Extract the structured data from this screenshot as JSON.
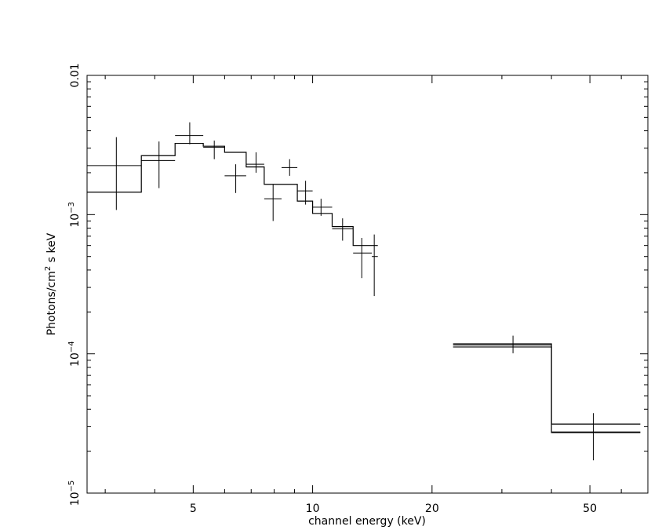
{
  "chart_data": {
    "type": "scatter",
    "title": "",
    "xlabel": "channel energy (keV)",
    "ylabel": "Photons/cm² s keV",
    "x_scale": "log",
    "y_scale": "log",
    "xlim": [
      2.7,
      70
    ],
    "ylim": [
      1e-05,
      0.01
    ],
    "x_ticks": [
      {
        "value": 5,
        "label": "5"
      },
      {
        "value": 10,
        "label": "10"
      },
      {
        "value": 20,
        "label": "20"
      },
      {
        "value": 50,
        "label": "50"
      }
    ],
    "y_ticks": [
      {
        "value": 1e-05,
        "base": "10",
        "exp": "−5"
      },
      {
        "value": 0.0001,
        "base": "10",
        "exp": "−4"
      },
      {
        "value": 0.001,
        "base": "10",
        "exp": "−3"
      },
      {
        "value": 0.01,
        "base": "0.01",
        "exp": ""
      }
    ],
    "grid": false,
    "legend": "none",
    "series": [
      {
        "type": "errorbars",
        "points": [
          {
            "x": 3.2,
            "xerr": [
              2.7,
              3.7
            ],
            "y": 0.00225,
            "yerr": [
              0.00108,
              0.0036
            ]
          },
          {
            "x": 4.1,
            "xerr": [
              3.7,
              4.5
            ],
            "y": 0.00245,
            "yerr": [
              0.00155,
              0.00335
            ]
          },
          {
            "x": 4.9,
            "xerr": [
              4.5,
              5.3
            ],
            "y": 0.0037,
            "yerr": [
              0.0032,
              0.0046
            ]
          },
          {
            "x": 5.65,
            "xerr": [
              5.3,
              6.0
            ],
            "y": 0.00305,
            "yerr": [
              0.0025,
              0.0034
            ]
          },
          {
            "x": 6.4,
            "xerr": [
              6.0,
              6.8
            ],
            "y": 0.0019,
            "yerr": [
              0.00143,
              0.0023
            ]
          },
          {
            "x": 7.2,
            "xerr": [
              6.8,
              7.55
            ],
            "y": 0.0023,
            "yerr": [
              0.002,
              0.0028
            ]
          },
          {
            "x": 7.95,
            "xerr": [
              7.55,
              8.35
            ],
            "y": 0.0013,
            "yerr": [
              0.0009,
              0.00165
            ]
          },
          {
            "x": 8.75,
            "xerr": [
              8.35,
              9.15
            ],
            "y": 0.00218,
            "yerr": [
              0.0019,
              0.0025
            ]
          },
          {
            "x": 9.6,
            "xerr": [
              9.15,
              10.0
            ],
            "y": 0.00148,
            "yerr": [
              0.00118,
              0.00175
            ]
          },
          {
            "x": 10.5,
            "xerr": [
              10.0,
              11.2
            ],
            "y": 0.00113,
            "yerr": [
              0.00098,
              0.0013
            ]
          },
          {
            "x": 11.9,
            "xerr": [
              11.2,
              12.65
            ],
            "y": 0.00079,
            "yerr": [
              0.00065,
              0.00094
            ]
          },
          {
            "x": 13.3,
            "xerr": [
              12.65,
              14.1
            ],
            "y": 0.00053,
            "yerr": [
              0.00035,
              0.00068
            ]
          },
          {
            "x": 14.3,
            "xerr": [
              14.1,
              14.6
            ],
            "y": 0.0005,
            "yerr": [
              0.00026,
              0.00072
            ]
          },
          {
            "x": 32,
            "xerr": [
              22.6,
              40
            ],
            "y": 0.000116,
            "yerr": [
              0.000101,
              0.000135
            ]
          },
          {
            "x": 51,
            "xerr": [
              40,
              67
            ],
            "y": 2.75e-05,
            "yerr": [
              1.72e-05,
              3.75e-05
            ]
          }
        ]
      },
      {
        "type": "step",
        "edges": [
          2.7,
          3.7,
          4.5,
          5.3,
          6.0,
          6.8,
          7.55,
          8.35,
          9.15,
          10.0,
          11.2,
          12.65,
          14.1,
          14.6
        ],
        "values": [
          0.00145,
          0.00265,
          0.00325,
          0.0031,
          0.0028,
          0.0022,
          0.00165,
          0.00165,
          0.00125,
          0.00102,
          0.00082,
          0.0006,
          0.0006
        ]
      },
      {
        "type": "step",
        "edges": [
          22.6,
          40,
          67
        ],
        "values": [
          0.000118,
          3.13e-05
        ]
      },
      {
        "type": "step",
        "edges": [
          22.6,
          40,
          67
        ],
        "values": [
          0.000112,
          2.72e-05
        ]
      }
    ]
  }
}
